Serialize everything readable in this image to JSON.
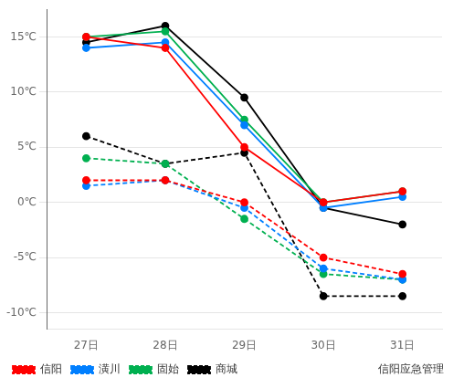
{
  "chart_data": {
    "type": "line",
    "categories": [
      "27日",
      "28日",
      "29日",
      "30日",
      "31日"
    ],
    "series": [
      {
        "name": "信阳",
        "color": "#ff0000",
        "high": [
          15,
          14,
          5,
          0,
          1
        ],
        "low": [
          2,
          2,
          0,
          -5,
          -6.5
        ]
      },
      {
        "name": "潢川",
        "color": "#007fff",
        "high": [
          14,
          14.5,
          7,
          -0.5,
          0.5
        ],
        "low": [
          1.5,
          2,
          -0.5,
          -6,
          -7
        ]
      },
      {
        "name": "固始",
        "color": "#00b050",
        "high": [
          15,
          15.5,
          7.5,
          0,
          1
        ],
        "low": [
          4,
          3.5,
          -1.5,
          -6.5,
          -7
        ]
      },
      {
        "name": "商城",
        "color": "#000000",
        "high": [
          14.5,
          16,
          9.5,
          -0.5,
          -2
        ],
        "low": [
          6,
          3.5,
          4.5,
          -8.5,
          -8.5
        ]
      }
    ],
    "annotation": "信阳应急管理",
    "ylim": [
      -11.5,
      17.5
    ],
    "yticks": [
      {
        "value": -10,
        "label": "-10℃"
      },
      {
        "value": -5,
        "label": "-5℃"
      },
      {
        "value": 0,
        "label": "0℃"
      },
      {
        "value": 5,
        "label": "5℃"
      },
      {
        "value": 10,
        "label": "10℃"
      },
      {
        "value": 15,
        "label": "15℃"
      }
    ],
    "grid": true,
    "legend": "bottom",
    "marker": "circle"
  }
}
